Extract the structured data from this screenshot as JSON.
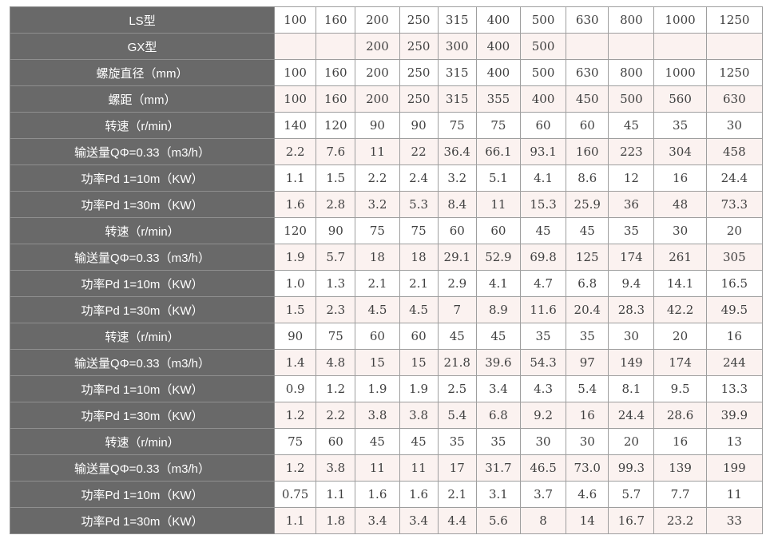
{
  "colors": {
    "header_bg": "#696969",
    "header_text": "#ffffff",
    "row_bg": "#ffffff",
    "row_alt_bg": "#fbf2f0",
    "border": "#9e9e9e",
    "cell_text": "#404040"
  },
  "table": {
    "label_column_width": 330,
    "data_column_widths": [
      52,
      49,
      55,
      48,
      48,
      55,
      57,
      53,
      57,
      65,
      70
    ],
    "rows": [
      {
        "label": "LS型",
        "values": [
          "100",
          "160",
          "200",
          "250",
          "315",
          "400",
          "500",
          "630",
          "800",
          "1000",
          "1250"
        ]
      },
      {
        "label": "GX型",
        "values": [
          "",
          "",
          "200",
          "250",
          "300",
          "400",
          "500",
          "",
          "",
          "",
          ""
        ]
      },
      {
        "label": "螺旋直径（mm）",
        "values": [
          "100",
          "160",
          "200",
          "250",
          "315",
          "400",
          "500",
          "630",
          "800",
          "1000",
          "1250"
        ]
      },
      {
        "label": "螺距（mm）",
        "values": [
          "100",
          "160",
          "200",
          "250",
          "315",
          "355",
          "400",
          "450",
          "500",
          "560",
          "630"
        ]
      },
      {
        "label": "转速（r/min）",
        "values": [
          "140",
          "120",
          "90",
          "90",
          "75",
          "75",
          "60",
          "60",
          "45",
          "35",
          "30"
        ]
      },
      {
        "label": "输送量QΦ=0.33（m3/h）",
        "values": [
          "2.2",
          "7.6",
          "11",
          "22",
          "36.4",
          "66.1",
          "93.1",
          "160",
          "223",
          "304",
          "458"
        ]
      },
      {
        "label": "功率Pd 1=10m（KW）",
        "values": [
          "1.1",
          "1.5",
          "2.2",
          "2.4",
          "3.2",
          "5.1",
          "4.1",
          "8.6",
          "12",
          "16",
          "24.4"
        ]
      },
      {
        "label": "功率Pd 1=30m（KW）",
        "values": [
          "1.6",
          "2.8",
          "3.2",
          "5.3",
          "8.4",
          "11",
          "15.3",
          "25.9",
          "36",
          "48",
          "73.3"
        ]
      },
      {
        "label": "转速（r/min）",
        "values": [
          "120",
          "90",
          "75",
          "75",
          "60",
          "60",
          "45",
          "45",
          "35",
          "30",
          "20"
        ]
      },
      {
        "label": "输送量QΦ=0.33（m3/h）",
        "values": [
          "1.9",
          "5.7",
          "18",
          "18",
          "29.1",
          "52.9",
          "69.8",
          "125",
          "174",
          "261",
          "305"
        ]
      },
      {
        "label": "功率Pd 1=10m（KW）",
        "values": [
          "1.0",
          "1.3",
          "2.1",
          "2.1",
          "2.9",
          "4.1",
          "4.7",
          "6.8",
          "9.4",
          "14.1",
          "16.5"
        ]
      },
      {
        "label": "功率Pd 1=30m（KW）",
        "values": [
          "1.5",
          "2.3",
          "4.5",
          "4.5",
          "7",
          "8.9",
          "11.6",
          "20.4",
          "28.3",
          "42.2",
          "49.5"
        ]
      },
      {
        "label": "转速（r/min）",
        "values": [
          "90",
          "75",
          "60",
          "60",
          "45",
          "45",
          "35",
          "35",
          "30",
          "20",
          "16"
        ]
      },
      {
        "label": "输送量QΦ=0.33（m3/h）",
        "values": [
          "1.4",
          "4.8",
          "15",
          "15",
          "21.8",
          "39.6",
          "54.3",
          "97",
          "149",
          "174",
          "244"
        ]
      },
      {
        "label": "功率Pd 1=10m（KW）",
        "values": [
          "0.9",
          "1.2",
          "1.9",
          "1.9",
          "2.5",
          "3.4",
          "4.3",
          "5.4",
          "8.1",
          "9.5",
          "13.3"
        ]
      },
      {
        "label": "功率Pd 1=30m（KW）",
        "values": [
          "1.2",
          "2.2",
          "3.8",
          "3.8",
          "5.4",
          "6.8",
          "9.2",
          "16",
          "24.4",
          "28.6",
          "39.9"
        ]
      },
      {
        "label": "转速（r/min）",
        "values": [
          "75",
          "60",
          "45",
          "45",
          "35",
          "35",
          "30",
          "30",
          "20",
          "16",
          "13"
        ]
      },
      {
        "label": "输送量QΦ=0.33（m3/h）",
        "values": [
          "1.2",
          "3.8",
          "11",
          "11",
          "17",
          "31.7",
          "46.5",
          "73.0",
          "99.3",
          "139",
          "199"
        ]
      },
      {
        "label": "功率Pd 1=10m（KW）",
        "values": [
          "0.75",
          "1.1",
          "1.6",
          "1.6",
          "2.1",
          "3.1",
          "3.7",
          "4.6",
          "5.7",
          "7.7",
          "11"
        ]
      },
      {
        "label": "功率Pd 1=30m（KW）",
        "values": [
          "1.1",
          "1.8",
          "3.4",
          "3.4",
          "4.4",
          "5.6",
          "8",
          "14",
          "16.7",
          "23.2",
          "33"
        ]
      }
    ]
  }
}
